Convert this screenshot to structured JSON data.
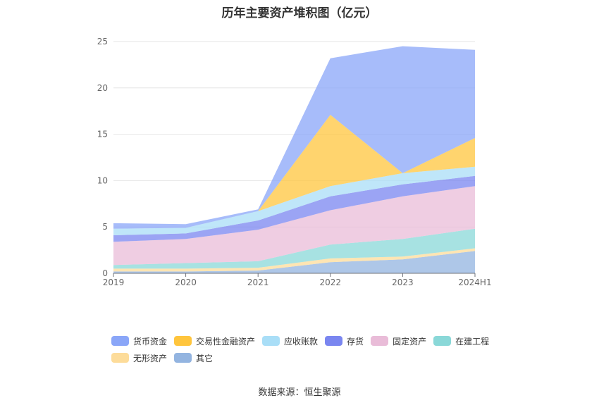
{
  "chart_data": {
    "type": "area",
    "stacked": true,
    "title": "历年主要资产堆积图（亿元）",
    "categories": [
      "2019",
      "2020",
      "2021",
      "2022",
      "2023",
      "2024H1"
    ],
    "ylim": [
      0,
      25
    ],
    "yticks": [
      0,
      5,
      10,
      15,
      20,
      25
    ],
    "grid": true,
    "legend_position": "bottom",
    "series": [
      {
        "name": "其它",
        "color": "#93b4e0",
        "values": [
          0.2,
          0.2,
          0.3,
          1.2,
          1.5,
          2.4
        ]
      },
      {
        "name": "无形资产",
        "color": "#fddc9a",
        "values": [
          0.3,
          0.3,
          0.3,
          0.4,
          0.3,
          0.3
        ]
      },
      {
        "name": "在建工程",
        "color": "#8ad8d8",
        "values": [
          0.4,
          0.6,
          0.7,
          1.5,
          1.9,
          2.1
        ]
      },
      {
        "name": "固定资产",
        "color": "#e9bcd8",
        "values": [
          2.5,
          2.6,
          3.4,
          3.7,
          4.6,
          4.6
        ]
      },
      {
        "name": "存货",
        "color": "#7a86f0",
        "values": [
          0.7,
          0.6,
          1.0,
          1.5,
          1.3,
          1.1
        ]
      },
      {
        "name": "应收账款",
        "color": "#a9def7",
        "values": [
          0.7,
          0.6,
          1.0,
          1.1,
          1.2,
          1.0
        ]
      },
      {
        "name": "交易性金融资产",
        "color": "#ffc53d",
        "values": [
          0.0,
          0.0,
          0.0,
          7.7,
          0.0,
          3.1
        ]
      },
      {
        "name": "货币资金",
        "color": "#8aa6f8",
        "values": [
          0.6,
          0.4,
          0.2,
          6.1,
          13.7,
          9.5
        ]
      }
    ],
    "legend_order": [
      "货币资金",
      "交易性金融资产",
      "应收账款",
      "存货",
      "固定资产",
      "在建工程",
      "无形资产",
      "其它"
    ]
  },
  "source": "数据来源：恒生聚源"
}
